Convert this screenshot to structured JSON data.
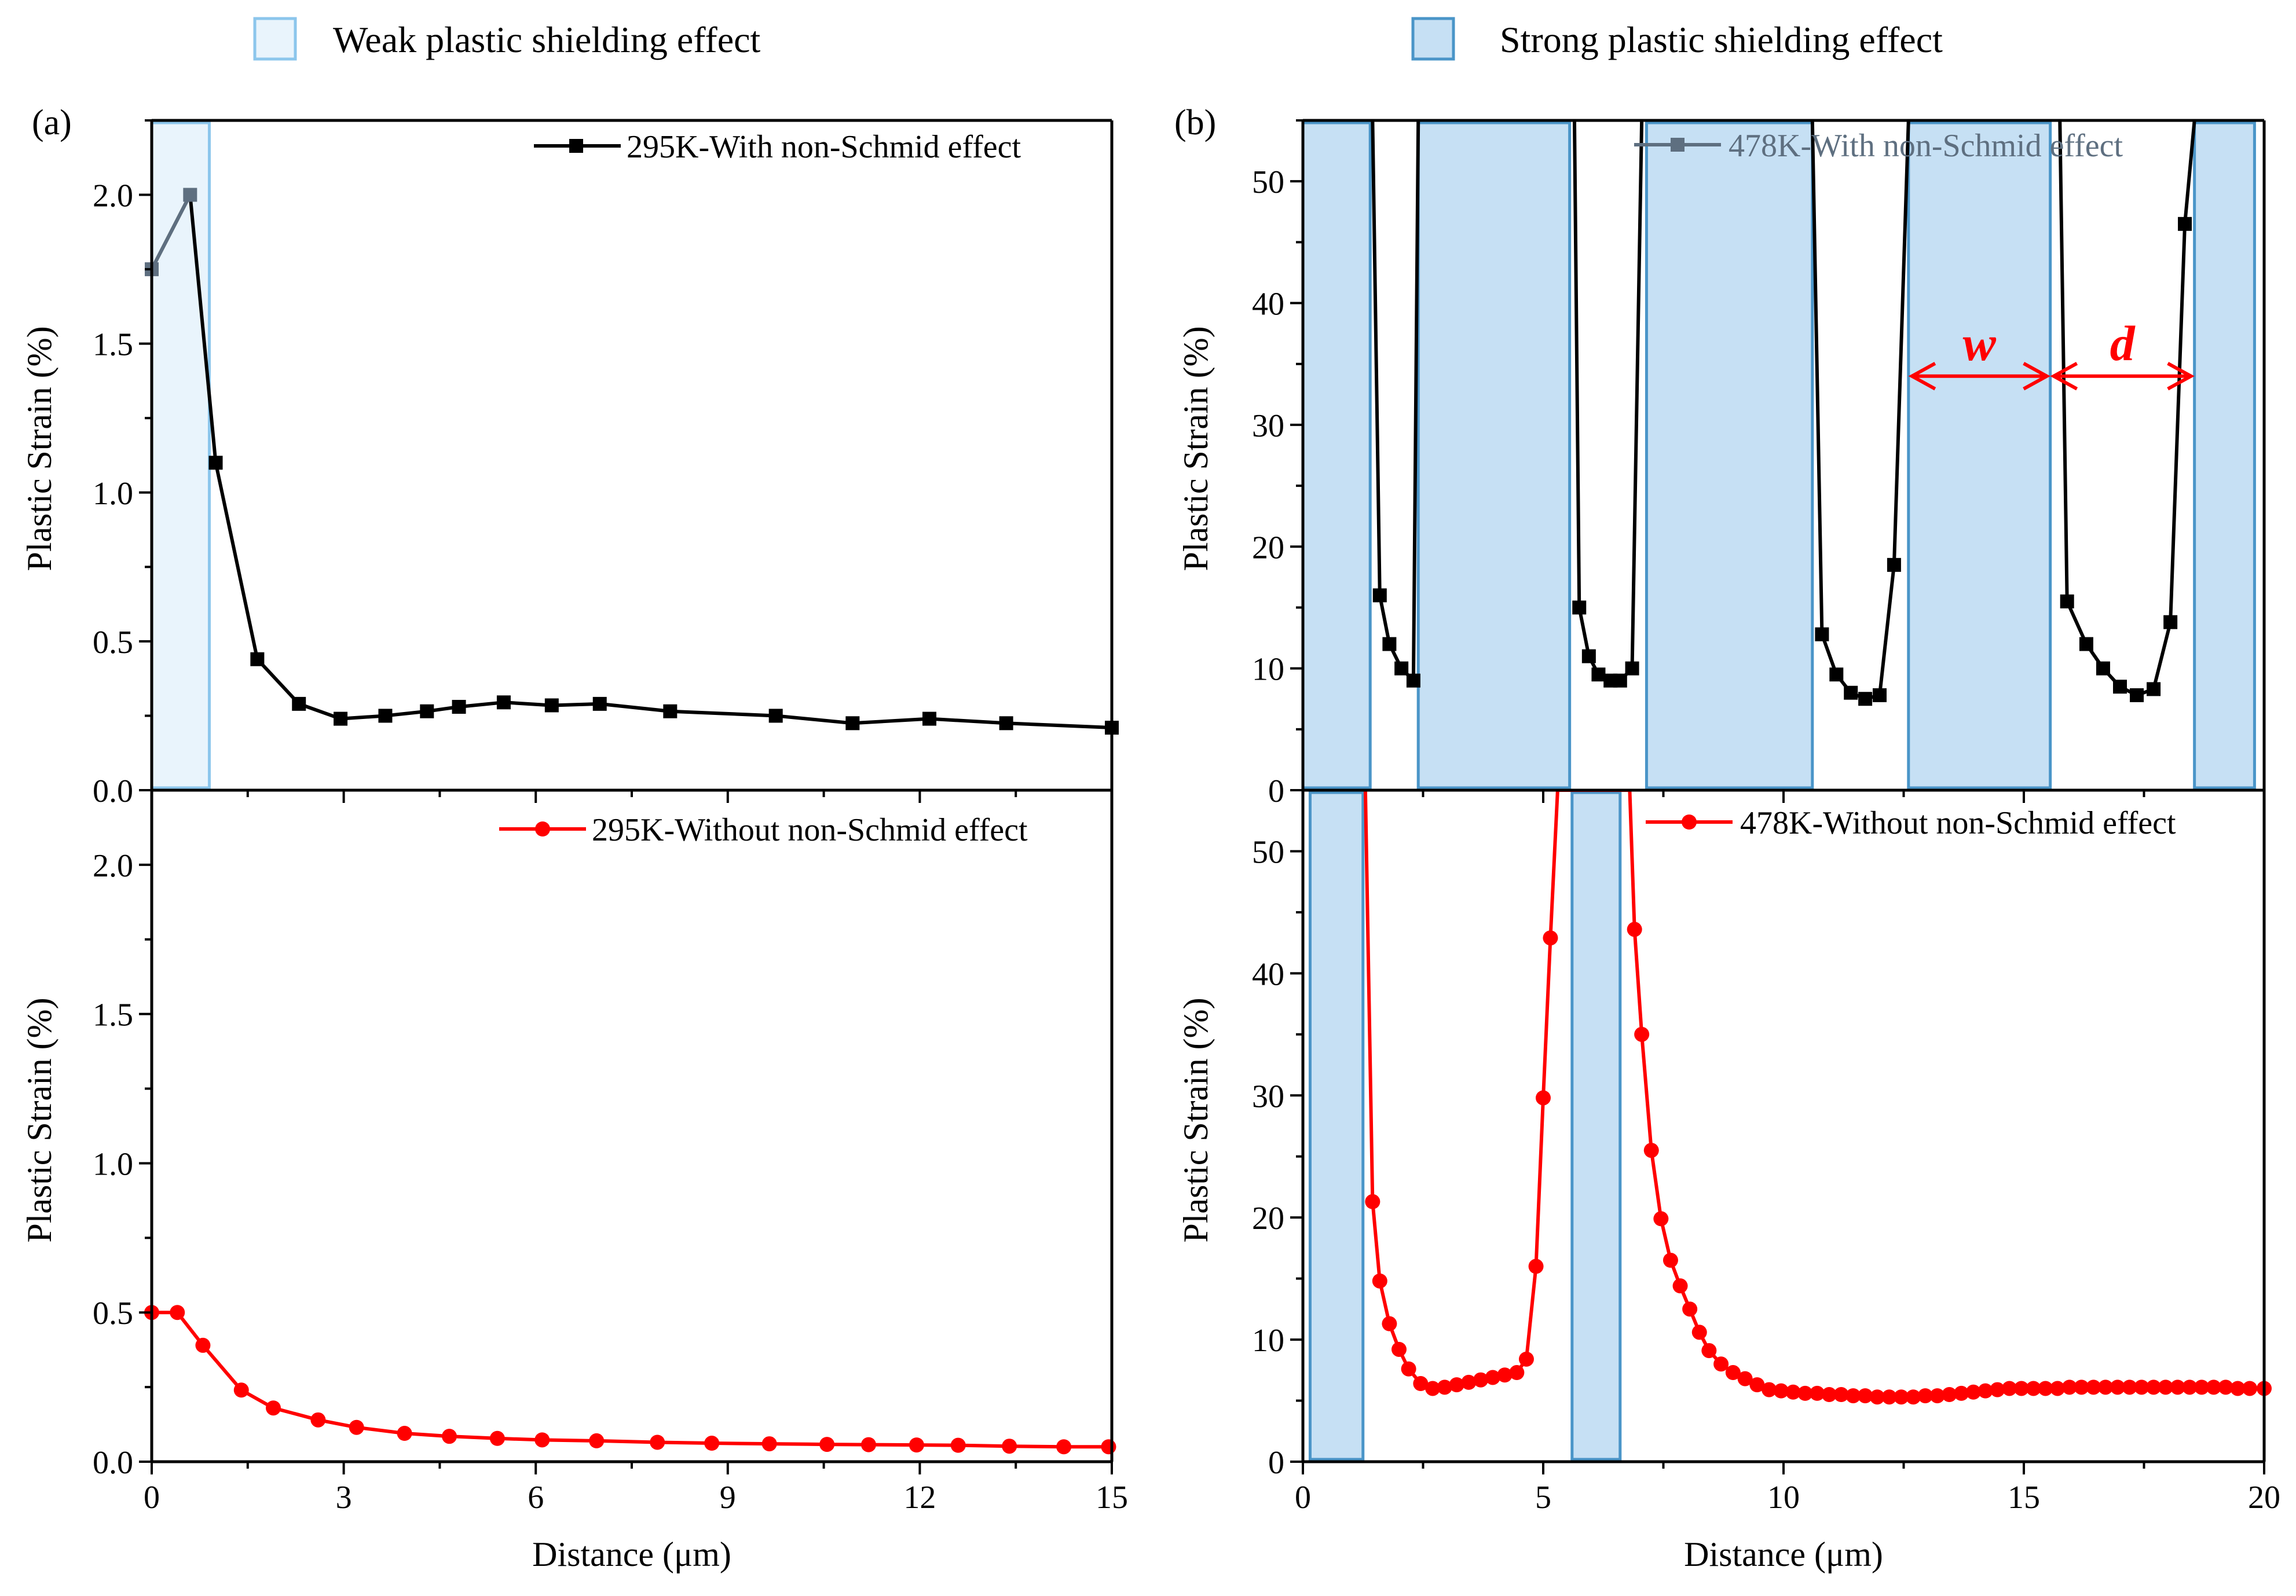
{
  "legend_top": {
    "weak": {
      "label": "Weak plastic shielding effect",
      "fill": "#e9f4fc",
      "stroke": "#8cc6ec"
    },
    "strong": {
      "label": "Strong plastic shielding effect",
      "fill": "#c6e0f4",
      "stroke": "#4a95c8"
    }
  },
  "colors": {
    "black_series": "#000000",
    "red_series": "#ff0000",
    "gray_series": "#5e6f80"
  },
  "chart_data": [
    {
      "id": "a_top",
      "panel_label": "(a)",
      "type": "line",
      "xlim": [
        0,
        15
      ],
      "ylim": [
        0,
        2.25
      ],
      "yticks": [
        0.0,
        0.5,
        1.0,
        1.5,
        2.0
      ],
      "ytick_labels": [
        "0.0",
        "0.5",
        "1.0",
        "1.5",
        "2.0"
      ],
      "ylabel": "Plastic Strain (%)",
      "series": [
        {
          "name": "295K-With non-Schmid effect",
          "color": "#000000",
          "marker": "square",
          "x": [
            0,
            0.6,
            1.0,
            1.65,
            2.3,
            2.95,
            3.65,
            4.3,
            4.8,
            5.5,
            6.25,
            7.0,
            8.1,
            9.75,
            10.95,
            12.15,
            13.35,
            15.0
          ],
          "y": [
            1.75,
            2.0,
            1.1,
            0.44,
            0.29,
            0.24,
            0.25,
            0.265,
            0.28,
            0.295,
            0.285,
            0.29,
            0.265,
            0.25,
            0.225,
            0.24,
            0.225,
            0.21
          ],
          "masked_color": "#5e6f80"
        }
      ],
      "shaded_regions": [
        {
          "x0": 0.0,
          "x1": 0.9,
          "kind": "weak"
        }
      ]
    },
    {
      "id": "a_bottom",
      "type": "line",
      "xlim": [
        0,
        15
      ],
      "ylim": [
        0,
        2.25
      ],
      "xticks": [
        0,
        3,
        6,
        9,
        12,
        15
      ],
      "xtick_labels": [
        "0",
        "3",
        "6",
        "9",
        "12",
        "15"
      ],
      "yticks": [
        0.0,
        0.5,
        1.0,
        1.5,
        2.0
      ],
      "ytick_labels": [
        "0.0",
        "0.5",
        "1.0",
        "1.5",
        "2.0"
      ],
      "xlabel": "Distance (μm)",
      "ylabel": "Plastic Strain (%)",
      "series": [
        {
          "name": "295K-Without non-Schmid effect",
          "color": "#ff0000",
          "marker": "circle",
          "x": [
            0,
            0.4,
            0.8,
            1.4,
            1.9,
            2.6,
            3.2,
            3.95,
            4.65,
            5.4,
            6.1,
            6.95,
            7.9,
            8.75,
            9.65,
            10.55,
            11.2,
            11.95,
            12.6,
            13.4,
            14.25,
            14.95
          ],
          "y": [
            0.5,
            0.5,
            0.39,
            0.24,
            0.18,
            0.14,
            0.115,
            0.095,
            0.085,
            0.078,
            0.073,
            0.07,
            0.065,
            0.062,
            0.06,
            0.058,
            0.057,
            0.056,
            0.055,
            0.052,
            0.05,
            0.05
          ]
        }
      ],
      "shaded_regions": []
    },
    {
      "id": "b_top",
      "panel_label": "(b)",
      "type": "line",
      "xlim": [
        0,
        20
      ],
      "ylim": [
        0,
        55
      ],
      "yticks": [
        0,
        10,
        20,
        30,
        40,
        50
      ],
      "ytick_labels": [
        "0",
        "10",
        "20",
        "30",
        "40",
        "50"
      ],
      "ylabel": "Plastic Strain (%)",
      "series": [
        {
          "name": "478K-With non-Schmid effect",
          "color": "#000000",
          "marker": "square",
          "segments": [
            {
              "x": [
                1.45,
                1.6,
                1.8,
                2.05,
                2.3,
                2.4
              ],
              "y": [
                55,
                16,
                12,
                10,
                9,
                55
              ]
            },
            {
              "x": [
                5.65,
                5.75,
                5.95,
                6.15,
                6.4,
                6.6,
                6.85,
                7.05
              ],
              "y": [
                55,
                15,
                11,
                9.5,
                9,
                9,
                10,
                55
              ]
            },
            {
              "x": [
                10.6,
                10.8,
                11.1,
                11.4,
                11.7,
                12.0,
                12.3,
                12.6
              ],
              "y": [
                55,
                12.8,
                9.5,
                8,
                7.5,
                7.8,
                18.5,
                55
              ]
            },
            {
              "x": [
                15.75,
                15.9,
                16.3,
                16.65,
                17.0,
                17.35,
                17.7,
                18.05,
                18.35,
                18.55
              ],
              "y": [
                55,
                15.5,
                12,
                10,
                8.5,
                7.8,
                8.3,
                13.8,
                46.5,
                55
              ]
            }
          ]
        }
      ],
      "shaded_regions": [
        {
          "x0": 0.0,
          "x1": 1.4,
          "kind": "strong"
        },
        {
          "x0": 2.4,
          "x1": 5.55,
          "kind": "strong"
        },
        {
          "x0": 7.15,
          "x1": 10.6,
          "kind": "strong"
        },
        {
          "x0": 12.6,
          "x1": 15.55,
          "kind": "strong"
        },
        {
          "x0": 18.55,
          "x1": 19.8,
          "kind": "strong"
        }
      ],
      "annotations": [
        {
          "text": "w",
          "x0": 12.6,
          "x1": 15.55,
          "y": 34
        },
        {
          "text": "d",
          "x0": 15.55,
          "x1": 18.55,
          "y": 34
        }
      ]
    },
    {
      "id": "b_bottom",
      "type": "line",
      "xlim": [
        0,
        20
      ],
      "ylim": [
        0,
        55
      ],
      "xticks": [
        0,
        5,
        10,
        15,
        20
      ],
      "xtick_labels": [
        "0",
        "5",
        "10",
        "15",
        "20"
      ],
      "yticks": [
        0,
        10,
        20,
        30,
        40,
        50
      ],
      "ytick_labels": [
        "0",
        "10",
        "20",
        "30",
        "40",
        "50"
      ],
      "xlabel": "Distance (μm)",
      "ylabel": "Plastic Strain (%)",
      "series": [
        {
          "name": "478K-Without non-Schmid effect",
          "color": "#ff0000",
          "marker": "circle",
          "x": [
            1.3,
            1.45,
            1.6,
            1.8,
            2.0,
            2.2,
            2.45,
            2.7,
            2.95,
            3.2,
            3.45,
            3.7,
            3.95,
            4.2,
            4.45,
            4.65,
            4.85,
            5.0,
            5.15,
            5.3,
            5.45,
            5.55,
            6.8,
            6.9,
            7.05,
            7.25,
            7.45,
            7.65,
            7.85,
            8.05,
            8.25,
            8.45,
            8.7,
            8.95,
            9.2,
            9.45,
            9.7,
            9.95,
            10.2,
            10.45,
            10.7,
            10.95,
            11.2,
            11.45,
            11.7,
            11.95,
            12.2,
            12.45,
            12.7,
            12.95,
            13.2,
            13.45,
            13.7,
            13.95,
            14.2,
            14.45,
            14.7,
            14.95,
            15.2,
            15.45,
            15.7,
            15.95,
            16.2,
            16.45,
            16.7,
            16.95,
            17.2,
            17.45,
            17.7,
            17.95,
            18.2,
            18.45,
            18.7,
            18.95,
            19.2,
            19.45,
            19.7,
            20.0
          ],
          "y": [
            55,
            21.3,
            14.8,
            11.3,
            9.2,
            7.6,
            6.4,
            6.0,
            6.1,
            6.3,
            6.5,
            6.7,
            6.9,
            7.1,
            7.3,
            8.4,
            16,
            29.8,
            42.9,
            55,
            55,
            55,
            55,
            43.6,
            35,
            25.5,
            19.9,
            16.5,
            14.4,
            12.5,
            10.6,
            9.1,
            8.0,
            7.3,
            6.8,
            6.3,
            5.9,
            5.8,
            5.7,
            5.6,
            5.6,
            5.5,
            5.5,
            5.4,
            5.4,
            5.3,
            5.3,
            5.3,
            5.3,
            5.4,
            5.4,
            5.5,
            5.6,
            5.7,
            5.8,
            5.9,
            6.0,
            6.0,
            6.0,
            6.0,
            6.0,
            6.1,
            6.1,
            6.1,
            6.1,
            6.1,
            6.1,
            6.1,
            6.1,
            6.1,
            6.1,
            6.1,
            6.1,
            6.1,
            6.1,
            6.0,
            6.0,
            6.0
          ]
        }
      ],
      "shaded_regions": [
        {
          "x0": 0.15,
          "x1": 1.25,
          "kind": "strong"
        },
        {
          "x0": 5.6,
          "x1": 6.6,
          "kind": "strong"
        }
      ]
    }
  ]
}
